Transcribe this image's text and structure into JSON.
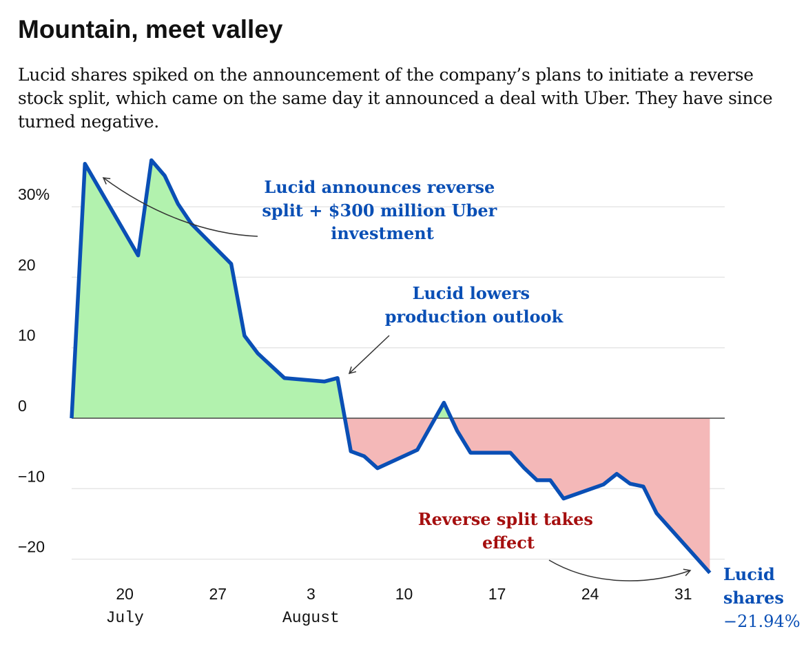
{
  "title": "Mountain, meet valley",
  "subtitle": "Lucid shares spiked on the announcement of the company’s plans to initiate a reverse stock split, which came on the same day it announced a deal with Uber. They have since turned negative.",
  "colors": {
    "line": "#0a4fb5",
    "positive_fill": "#b2f2ae",
    "negative_fill": "#f4b8b8",
    "annotation_blue": "#0a4fb5",
    "annotation_red": "#a50f0f"
  },
  "chart_data": {
    "type": "area",
    "title": "Mountain, meet valley",
    "xlabel": "",
    "ylabel": "",
    "ylim": [
      -22,
      37
    ],
    "grid": true,
    "y_ticks": [
      {
        "value": 30,
        "label": "30%"
      },
      {
        "value": 20,
        "label": "20"
      },
      {
        "value": 10,
        "label": "10"
      },
      {
        "value": 0,
        "label": "0"
      },
      {
        "value": -10,
        "label": "−10"
      },
      {
        "value": -20,
        "label": "−20"
      }
    ],
    "x_ticks": [
      {
        "date": "Jul 20",
        "label": "20",
        "month": "July"
      },
      {
        "date": "Jul 27",
        "label": "27",
        "month": ""
      },
      {
        "date": "Aug 3",
        "label": "3",
        "month": "August"
      },
      {
        "date": "Aug 10",
        "label": "10",
        "month": ""
      },
      {
        "date": "Aug 17",
        "label": "17",
        "month": ""
      },
      {
        "date": "Aug 24",
        "label": "24",
        "month": ""
      },
      {
        "date": "Aug 31",
        "label": "31",
        "month": ""
      }
    ],
    "series": [
      {
        "name": "Lucid shares",
        "points": [
          [
            "Jul 16",
            0
          ],
          [
            "Jul 17",
            36.1
          ],
          [
            "Jul 21",
            23.1
          ],
          [
            "Jul 22",
            36.6
          ],
          [
            "Jul 23",
            34.4
          ],
          [
            "Jul 24",
            30.4
          ],
          [
            "Jul 25",
            27.6
          ],
          [
            "Jul 28",
            21.9
          ],
          [
            "Jul 29",
            11.7
          ],
          [
            "Jul 30",
            9.2
          ],
          [
            "Aug 1",
            5.7
          ],
          [
            "Aug 4",
            5.2
          ],
          [
            "Aug 5",
            5.7
          ],
          [
            "Aug 6",
            -4.7
          ],
          [
            "Aug 7",
            -5.4
          ],
          [
            "Aug 8",
            -7.1
          ],
          [
            "Aug 11",
            -4.5
          ],
          [
            "Aug 13",
            2.2
          ],
          [
            "Aug 14",
            -1.8
          ],
          [
            "Aug 15",
            -4.9
          ],
          [
            "Aug 18",
            -4.9
          ],
          [
            "Aug 19",
            -7.0
          ],
          [
            "Aug 20",
            -8.8
          ],
          [
            "Aug 21",
            -8.8
          ],
          [
            "Aug 22",
            -11.4
          ],
          [
            "Aug 25",
            -9.4
          ],
          [
            "Aug 26",
            -7.9
          ],
          [
            "Aug 27",
            -9.3
          ],
          [
            "Aug 28",
            -9.7
          ],
          [
            "Aug 29",
            -13.5
          ],
          [
            "Sep 2",
            -21.94
          ]
        ]
      }
    ],
    "annotations": [
      {
        "lines": [
          "Lucid announces reverse",
          "split + $300 million Uber",
          "investment"
        ],
        "color": "blue"
      },
      {
        "lines": [
          "Lucid lowers",
          "production outlook"
        ],
        "color": "blue"
      },
      {
        "lines": [
          "Reverse split takes",
          "effect"
        ],
        "color": "red"
      }
    ],
    "end_label": {
      "lines": [
        "Lucid",
        "shares"
      ],
      "value": "−21.94%"
    }
  }
}
